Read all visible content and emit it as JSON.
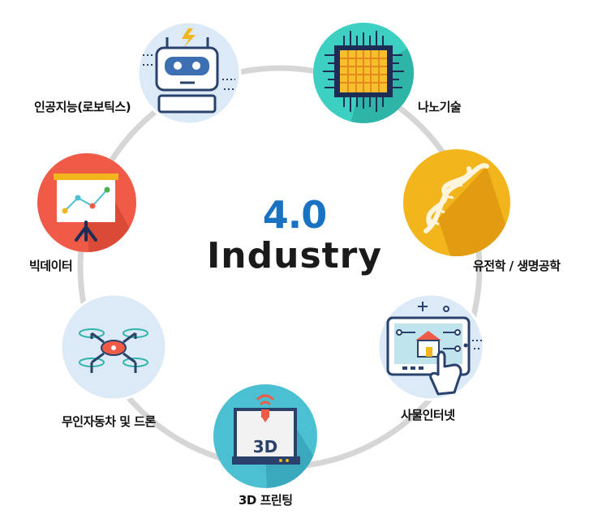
{
  "center": {
    "version": "4.0",
    "title": "Industry"
  },
  "nodes": [
    {
      "id": "ai",
      "label": "인공지능(로보틱스)",
      "color": "#dce9f7",
      "icon": "robot-icon"
    },
    {
      "id": "nano",
      "label": "나노기술",
      "color": "#3dcfc1",
      "icon": "chip-icon"
    },
    {
      "id": "bio",
      "label": "유전학 / 생명공학",
      "color": "#f2b51b",
      "icon": "dna-icon"
    },
    {
      "id": "iot",
      "label": "사물인터넷",
      "color": "#dce9f7",
      "icon": "smart-home-tablet-icon"
    },
    {
      "id": "print3d",
      "label": "3D 프린팅",
      "color": "#4cc0d3",
      "icon": "3d-printer-icon"
    },
    {
      "id": "drone",
      "label": "무인자동차 및 드론",
      "color": "#dce9f7",
      "icon": "drone-icon"
    },
    {
      "id": "bigdata",
      "label": "빅데이터",
      "color": "#ef5b47",
      "icon": "presentation-chart-icon"
    }
  ],
  "printer_text": "3D"
}
